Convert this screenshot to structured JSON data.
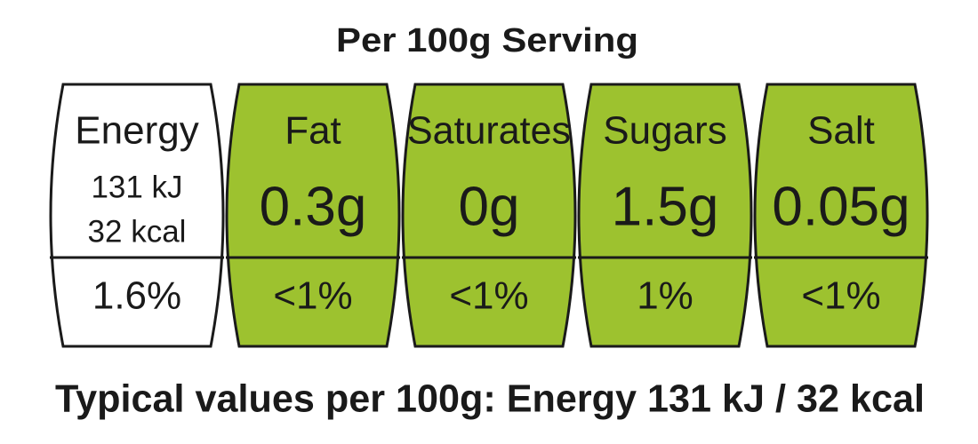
{
  "header": {
    "title": "Per 100g Serving"
  },
  "panels": [
    {
      "name": "Energy",
      "lines": [
        "131 kJ",
        "32 kcal"
      ],
      "percent": "1.6%",
      "color": "#ffffff"
    },
    {
      "name": "Fat",
      "amount": "0.3g",
      "percent": "<1%",
      "color": "#9dc22f"
    },
    {
      "name": "Saturates",
      "amount": "0g",
      "percent": "<1%",
      "color": "#9dc22f"
    },
    {
      "name": "Sugars",
      "amount": "1.5g",
      "percent": "1%",
      "color": "#9dc22f"
    },
    {
      "name": "Salt",
      "amount": "0.05g",
      "percent": "<1%",
      "color": "#9dc22f"
    }
  ],
  "footer": "Typical values per 100g: Energy 131 kJ / 32 kcal"
}
